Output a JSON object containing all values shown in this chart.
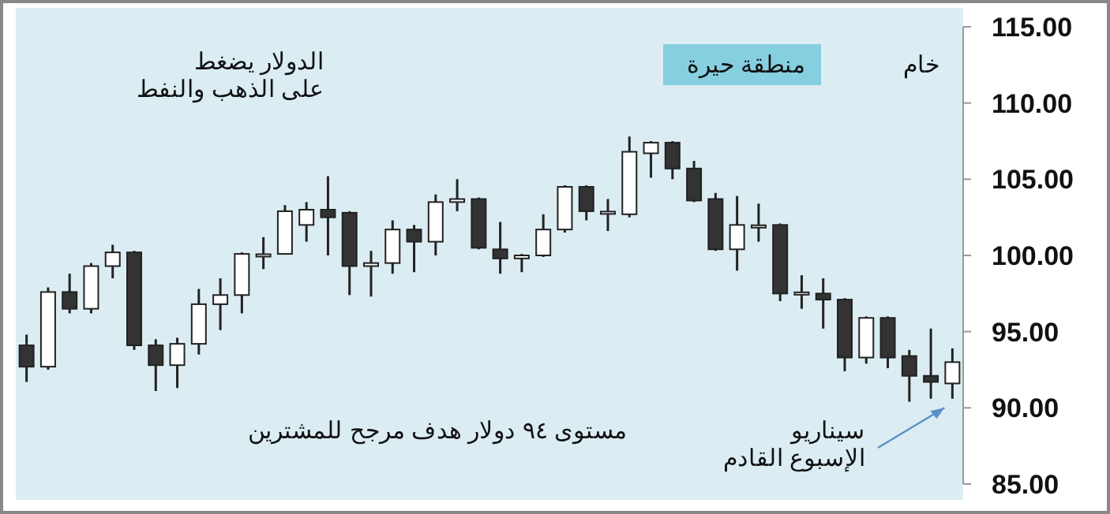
{
  "chart_data": {
    "type": "candlestick",
    "title": "الدولار يضغط\nعلى الذهب والنفط",
    "annotations": [
      "خام",
      "منطقة حيرة",
      "مستوى ٩٤ دولار هدف مرجح للمشترين",
      "سيناريو\nالإسبوع القادم"
    ],
    "categories": [
      null,
      null,
      null,
      null,
      null,
      null,
      null,
      null,
      null,
      null,
      null,
      null,
      null,
      null,
      null,
      null,
      null,
      null,
      null,
      null,
      null,
      null,
      null,
      null,
      null,
      null,
      null,
      null,
      null,
      null,
      null,
      null,
      null,
      null,
      null,
      null,
      null,
      null,
      null,
      null,
      null,
      null,
      null,
      null
    ],
    "ohlc": [
      [
        94.1,
        94.8,
        91.7,
        92.7
      ],
      [
        92.7,
        97.9,
        92.5,
        97.6
      ],
      [
        97.6,
        98.8,
        96.2,
        96.5
      ],
      [
        96.5,
        99.5,
        96.2,
        99.3
      ],
      [
        99.3,
        100.7,
        98.5,
        100.2
      ],
      [
        100.2,
        100.3,
        93.8,
        94.1
      ],
      [
        94.1,
        94.5,
        91.1,
        92.8
      ],
      [
        92.8,
        94.6,
        91.3,
        94.2
      ],
      [
        94.2,
        97.8,
        93.5,
        96.8
      ],
      [
        96.8,
        98.5,
        95.1,
        97.4
      ],
      [
        97.4,
        100.2,
        96.2,
        100.1
      ],
      [
        100.0,
        101.2,
        99.1,
        100.0
      ],
      [
        100.1,
        103.3,
        100.1,
        102.9
      ],
      [
        102.0,
        103.5,
        100.9,
        103.0
      ],
      [
        103.0,
        105.2,
        100.0,
        102.5
      ],
      [
        102.8,
        102.9,
        97.4,
        99.3
      ],
      [
        99.3,
        100.3,
        97.3,
        99.5
      ],
      [
        99.5,
        102.3,
        98.8,
        101.7
      ],
      [
        101.7,
        102.0,
        98.9,
        100.9
      ],
      [
        100.9,
        104.0,
        100.0,
        103.5
      ],
      [
        103.5,
        105.0,
        102.9,
        103.7
      ],
      [
        103.7,
        103.8,
        100.4,
        100.5
      ],
      [
        100.4,
        102.2,
        98.8,
        99.8
      ],
      [
        99.8,
        100.1,
        98.9,
        100.0
      ],
      [
        100.0,
        102.7,
        99.9,
        101.7
      ],
      [
        101.7,
        104.6,
        101.5,
        104.5
      ],
      [
        104.5,
        104.6,
        102.3,
        102.9
      ],
      [
        102.8,
        103.7,
        101.6,
        102.8
      ],
      [
        102.7,
        107.8,
        102.5,
        106.8
      ],
      [
        106.7,
        107.5,
        105.1,
        107.4
      ],
      [
        107.4,
        107.5,
        105.0,
        105.7
      ],
      [
        105.7,
        106.2,
        103.5,
        103.6
      ],
      [
        103.7,
        104.1,
        100.3,
        100.4
      ],
      [
        100.4,
        103.9,
        99.0,
        102.0
      ],
      [
        101.9,
        103.4,
        100.9,
        101.9
      ],
      [
        102.0,
        102.1,
        97.0,
        97.5
      ],
      [
        97.5,
        98.7,
        96.5,
        97.5
      ],
      [
        97.5,
        98.5,
        95.2,
        97.1
      ],
      [
        97.1,
        97.2,
        92.4,
        93.3
      ],
      [
        93.3,
        96.0,
        92.9,
        95.9
      ],
      [
        95.9,
        96.0,
        92.6,
        93.3
      ],
      [
        93.4,
        93.8,
        90.4,
        92.1
      ],
      [
        92.1,
        95.2,
        90.6,
        91.7
      ],
      [
        91.6,
        93.9,
        90.6,
        93.0
      ]
    ],
    "colors": [
      "#333333",
      "#ffffff",
      "#333333",
      "#ffffff",
      "#ffffff",
      "#333333",
      "#333333",
      "#ffffff",
      "#ffffff",
      "#ffffff",
      "#ffffff",
      "#ffffff",
      "#ffffff",
      "#ffffff",
      "#333333",
      "#333333",
      "#ffffff",
      "#ffffff",
      "#333333",
      "#ffffff",
      "#ffffff",
      "#333333",
      "#333333",
      "#ffffff",
      "#ffffff",
      "#ffffff",
      "#333333",
      "#ffffff",
      "#ffffff",
      "#ffffff",
      "#333333",
      "#333333",
      "#333333",
      "#ffffff",
      "#ffffff",
      "#333333",
      "#ffffff",
      "#333333",
      "#333333",
      "#ffffff",
      "#333333",
      "#333333",
      "#333333",
      "#ffffff"
    ],
    "ylim": [
      85,
      115
    ],
    "yticks": [
      {
        "value": 85,
        "label": "85.00"
      },
      {
        "value": 90,
        "label": "90.00"
      },
      {
        "value": 95,
        "label": "95.00"
      },
      {
        "value": 100,
        "label": "100.00"
      },
      {
        "value": 105,
        "label": "105.00"
      },
      {
        "value": 110,
        "label": "110.00"
      },
      {
        "value": 115,
        "label": "115.00"
      }
    ],
    "grid": false
  }
}
